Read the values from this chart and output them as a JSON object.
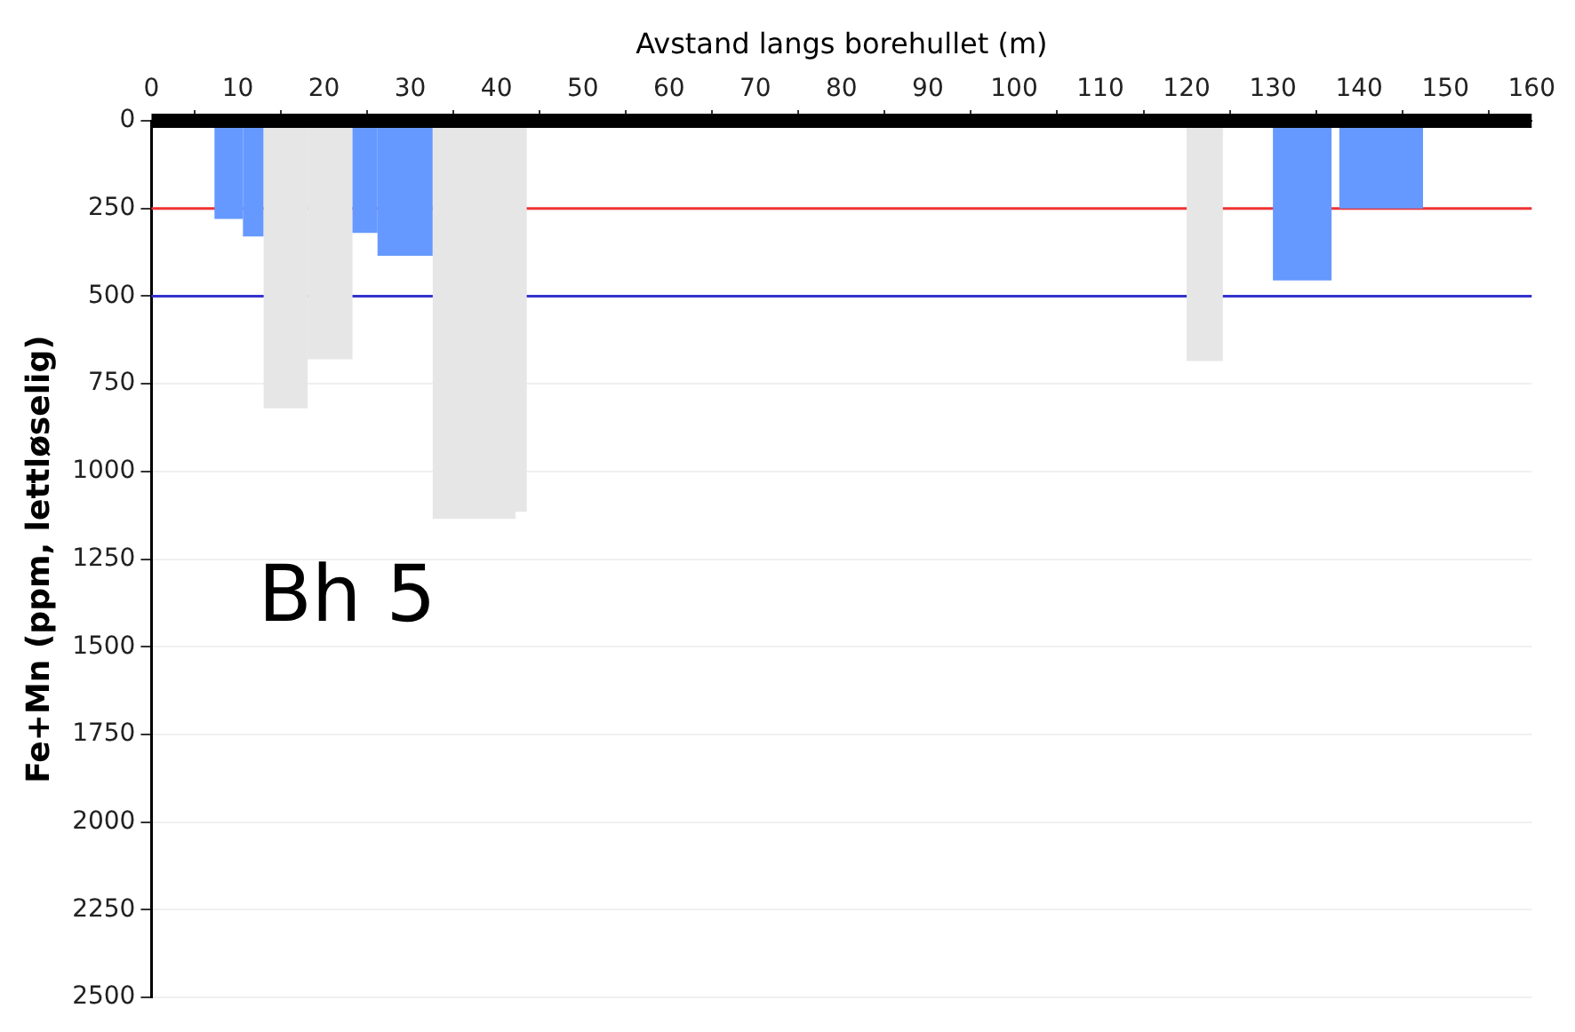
{
  "chart_data": {
    "type": "histogram",
    "xlabel": "Avstand langs borehullet (m)",
    "ylabel": "Fe+Mn (ppm, lettløselig)",
    "bins": [
      7.3,
      10.6,
      13,
      18.1,
      23.3,
      26.2,
      32.6,
      42.2,
      43.5,
      120,
      124.2,
      130,
      136.8,
      137.7,
      147.4
    ],
    "values": [
      280,
      330,
      820,
      680,
      320,
      385,
      1135,
      1115,
      null,
      685,
      null,
      455,
      null,
      250
    ],
    "colors": [
      "#6699ff",
      "#6699ff",
      "#e6e6e6",
      "#e6e6e6",
      "#6699ff",
      "#6699ff",
      "#e6e6e6",
      "#e6e6e6",
      "#e6e6e6",
      "#e6e6e6",
      "#6699ff",
      "#6699ff",
      "#6699ff",
      "#6699ff"
    ],
    "xlim": [
      0,
      160
    ],
    "xticks": [
      0,
      10,
      20,
      30,
      40,
      50,
      60,
      70,
      80,
      90,
      100,
      110,
      120,
      130,
      140,
      150,
      160
    ],
    "ylim": [
      2500,
      0
    ],
    "yticks": [
      0,
      250,
      500,
      750,
      1000,
      1250,
      1500,
      1750,
      2000,
      2250,
      2500
    ],
    "ref_lines": [
      {
        "axis": "y",
        "value": 0,
        "color": "#000000"
      },
      {
        "axis": "y",
        "value": 250,
        "color": "#ee3333"
      },
      {
        "axis": "y",
        "value": 500,
        "color": "#3333cc"
      }
    ],
    "annotations": [
      "Bh 5"
    ],
    "grid": "y",
    "legend": false
  }
}
